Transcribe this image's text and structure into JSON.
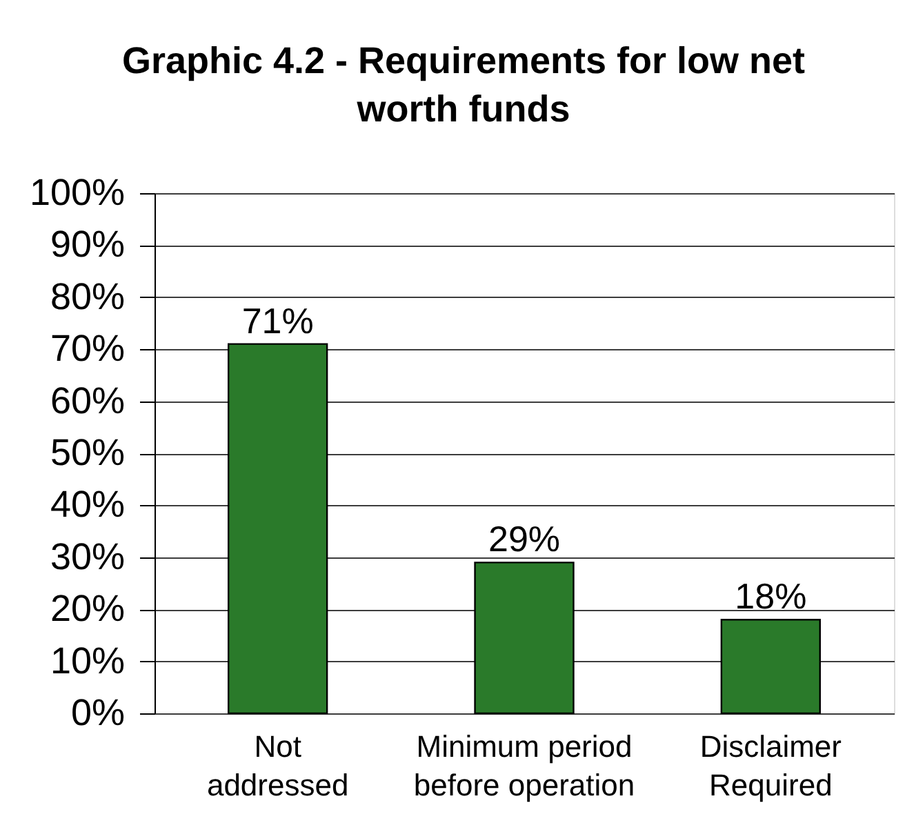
{
  "chart_data": {
    "type": "bar",
    "title": "Graphic 4.2 - Requirements for low net worth funds",
    "categories": [
      "Not addressed",
      "Minimum period before operation",
      "Disclaimer Required"
    ],
    "values": [
      71,
      29,
      18
    ],
    "color": "#2a7a2a",
    "value_labels": [
      "71%",
      "29%",
      "18%"
    ],
    "ylim": [
      0,
      100
    ],
    "yticks": [
      {
        "value": 0,
        "label": "0%"
      },
      {
        "value": 10,
        "label": "10%"
      },
      {
        "value": 20,
        "label": "20%"
      },
      {
        "value": 30,
        "label": "30%"
      },
      {
        "value": 40,
        "label": "40%"
      },
      {
        "value": 50,
        "label": "50%"
      },
      {
        "value": 60,
        "label": "60%"
      },
      {
        "value": 70,
        "label": "70%"
      },
      {
        "value": 80,
        "label": "80%"
      },
      {
        "value": 90,
        "label": "90%"
      },
      {
        "value": 100,
        "label": "100%"
      }
    ],
    "grid": "y"
  }
}
